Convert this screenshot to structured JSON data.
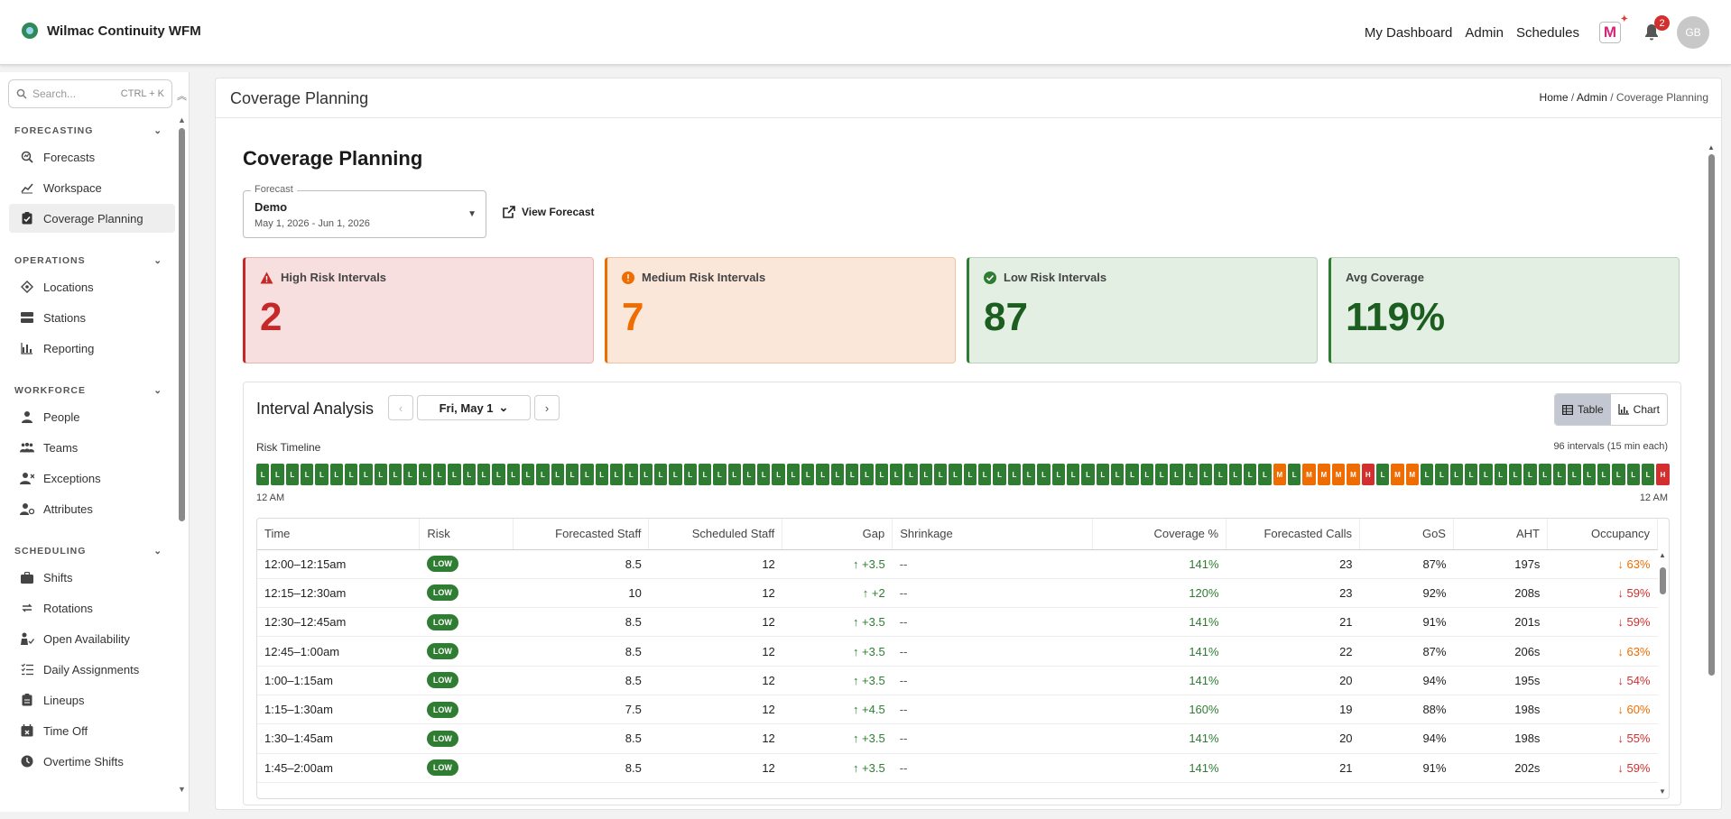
{
  "app": {
    "title": "Wilmac Continuity WFM"
  },
  "topnav": {
    "links": [
      "My Dashboard",
      "Admin",
      "Schedules"
    ],
    "m_icon_letter": "M",
    "notifications_count": "2",
    "avatar_initials": "GB"
  },
  "sidebar": {
    "search_placeholder": "Search...",
    "search_shortcut": "CTRL + K",
    "sections": [
      {
        "title": "FORECASTING",
        "items": [
          {
            "label": "Forecasts",
            "icon": "search-chart-icon"
          },
          {
            "label": "Workspace",
            "icon": "line-chart-icon"
          },
          {
            "label": "Coverage Planning",
            "icon": "clipboard-check-icon",
            "active": true
          }
        ]
      },
      {
        "title": "OPERATIONS",
        "items": [
          {
            "label": "Locations",
            "icon": "location-icon"
          },
          {
            "label": "Stations",
            "icon": "station-icon"
          },
          {
            "label": "Reporting",
            "icon": "bar-chart-icon"
          }
        ]
      },
      {
        "title": "WORKFORCE",
        "items": [
          {
            "label": "People",
            "icon": "person-icon"
          },
          {
            "label": "Teams",
            "icon": "teams-icon"
          },
          {
            "label": "Exceptions",
            "icon": "person-x-icon"
          },
          {
            "label": "Attributes",
            "icon": "person-gear-icon"
          }
        ]
      },
      {
        "title": "SCHEDULING",
        "items": [
          {
            "label": "Shifts",
            "icon": "briefcase-icon"
          },
          {
            "label": "Rotations",
            "icon": "rotate-icon"
          },
          {
            "label": "Open Availability",
            "icon": "availability-icon"
          },
          {
            "label": "Daily Assignments",
            "icon": "checklist-icon"
          },
          {
            "label": "Lineups",
            "icon": "clipboard-icon"
          },
          {
            "label": "Time Off",
            "icon": "calendar-x-icon"
          },
          {
            "label": "Overtime Shifts",
            "icon": "clock-icon"
          }
        ]
      }
    ]
  },
  "page": {
    "header_title": "Coverage Planning",
    "breadcrumb": [
      "Home",
      "Admin",
      "Coverage Planning"
    ],
    "title": "Coverage Planning"
  },
  "forecast": {
    "label": "Forecast",
    "value": "Demo",
    "range": "May 1, 2026 - Jun 1, 2026",
    "view_link": "View Forecast"
  },
  "cards": {
    "high": {
      "label": "High Risk Intervals",
      "value": "2"
    },
    "medium": {
      "label": "Medium Risk Intervals",
      "value": "7"
    },
    "low": {
      "label": "Low Risk Intervals",
      "value": "87"
    },
    "avg": {
      "label": "Avg Coverage",
      "value": "119%"
    }
  },
  "interval": {
    "title": "Interval Analysis",
    "date": "Fri, May 1",
    "toggle": {
      "table": "Table",
      "chart": "Chart"
    },
    "timeline_label": "Risk Timeline",
    "timeline_info": "96 intervals (15 min each)",
    "timeline_start": "12 AM",
    "timeline_end": "12 AM",
    "timeline": [
      "L",
      "L",
      "L",
      "L",
      "L",
      "L",
      "L",
      "L",
      "L",
      "L",
      "L",
      "L",
      "L",
      "L",
      "L",
      "L",
      "L",
      "L",
      "L",
      "L",
      "L",
      "L",
      "L",
      "L",
      "L",
      "L",
      "L",
      "L",
      "L",
      "L",
      "L",
      "L",
      "L",
      "L",
      "L",
      "L",
      "L",
      "L",
      "L",
      "L",
      "L",
      "L",
      "L",
      "L",
      "L",
      "L",
      "L",
      "L",
      "L",
      "L",
      "L",
      "L",
      "L",
      "L",
      "L",
      "L",
      "L",
      "L",
      "L",
      "L",
      "L",
      "L",
      "L",
      "L",
      "L",
      "L",
      "L",
      "L",
      "L",
      "M",
      "L",
      "M",
      "M",
      "M",
      "M",
      "H",
      "L",
      "M",
      "M",
      "L",
      "L",
      "L",
      "L",
      "L",
      "L",
      "L",
      "L",
      "L",
      "L",
      "L",
      "L",
      "L",
      "L",
      "L",
      "L",
      "H"
    ]
  },
  "table": {
    "columns": [
      "Time",
      "Risk",
      "Forecasted Staff",
      "Scheduled Staff",
      "Gap",
      "Shrinkage",
      "Coverage %",
      "Forecasted Calls",
      "GoS",
      "AHT",
      "Occupancy"
    ],
    "rows": [
      {
        "time": "12:00–12:15am",
        "risk": "LOW",
        "fstaff": "8.5",
        "sstaff": "12",
        "gap": "↑ +3.5",
        "shrink": "--",
        "cov": "141%",
        "calls": "23",
        "gos": "87%",
        "aht": "197s",
        "occ": "↓ 63%",
        "occ_level": "o"
      },
      {
        "time": "12:15–12:30am",
        "risk": "LOW",
        "fstaff": "10",
        "sstaff": "12",
        "gap": "↑ +2",
        "shrink": "--",
        "cov": "120%",
        "calls": "23",
        "gos": "92%",
        "aht": "208s",
        "occ": "↓ 59%",
        "occ_level": "r"
      },
      {
        "time": "12:30–12:45am",
        "risk": "LOW",
        "fstaff": "8.5",
        "sstaff": "12",
        "gap": "↑ +3.5",
        "shrink": "--",
        "cov": "141%",
        "calls": "21",
        "gos": "91%",
        "aht": "201s",
        "occ": "↓ 59%",
        "occ_level": "r"
      },
      {
        "time": "12:45–1:00am",
        "risk": "LOW",
        "fstaff": "8.5",
        "sstaff": "12",
        "gap": "↑ +3.5",
        "shrink": "--",
        "cov": "141%",
        "calls": "22",
        "gos": "87%",
        "aht": "206s",
        "occ": "↓ 63%",
        "occ_level": "o"
      },
      {
        "time": "1:00–1:15am",
        "risk": "LOW",
        "fstaff": "8.5",
        "sstaff": "12",
        "gap": "↑ +3.5",
        "shrink": "--",
        "cov": "141%",
        "calls": "20",
        "gos": "94%",
        "aht": "195s",
        "occ": "↓ 54%",
        "occ_level": "r"
      },
      {
        "time": "1:15–1:30am",
        "risk": "LOW",
        "fstaff": "7.5",
        "sstaff": "12",
        "gap": "↑ +4.5",
        "shrink": "--",
        "cov": "160%",
        "calls": "19",
        "gos": "88%",
        "aht": "198s",
        "occ": "↓ 60%",
        "occ_level": "o"
      },
      {
        "time": "1:30–1:45am",
        "risk": "LOW",
        "fstaff": "8.5",
        "sstaff": "12",
        "gap": "↑ +3.5",
        "shrink": "--",
        "cov": "141%",
        "calls": "20",
        "gos": "94%",
        "aht": "198s",
        "occ": "↓ 55%",
        "occ_level": "r"
      },
      {
        "time": "1:45–2:00am",
        "risk": "LOW",
        "fstaff": "8.5",
        "sstaff": "12",
        "gap": "↑ +3.5",
        "shrink": "--",
        "cov": "141%",
        "calls": "21",
        "gos": "91%",
        "aht": "202s",
        "occ": "↓ 59%",
        "occ_level": "r"
      }
    ]
  },
  "colors": {
    "low": "#2e7d32",
    "medium": "#ef6c00",
    "high": "#d32f2f"
  }
}
